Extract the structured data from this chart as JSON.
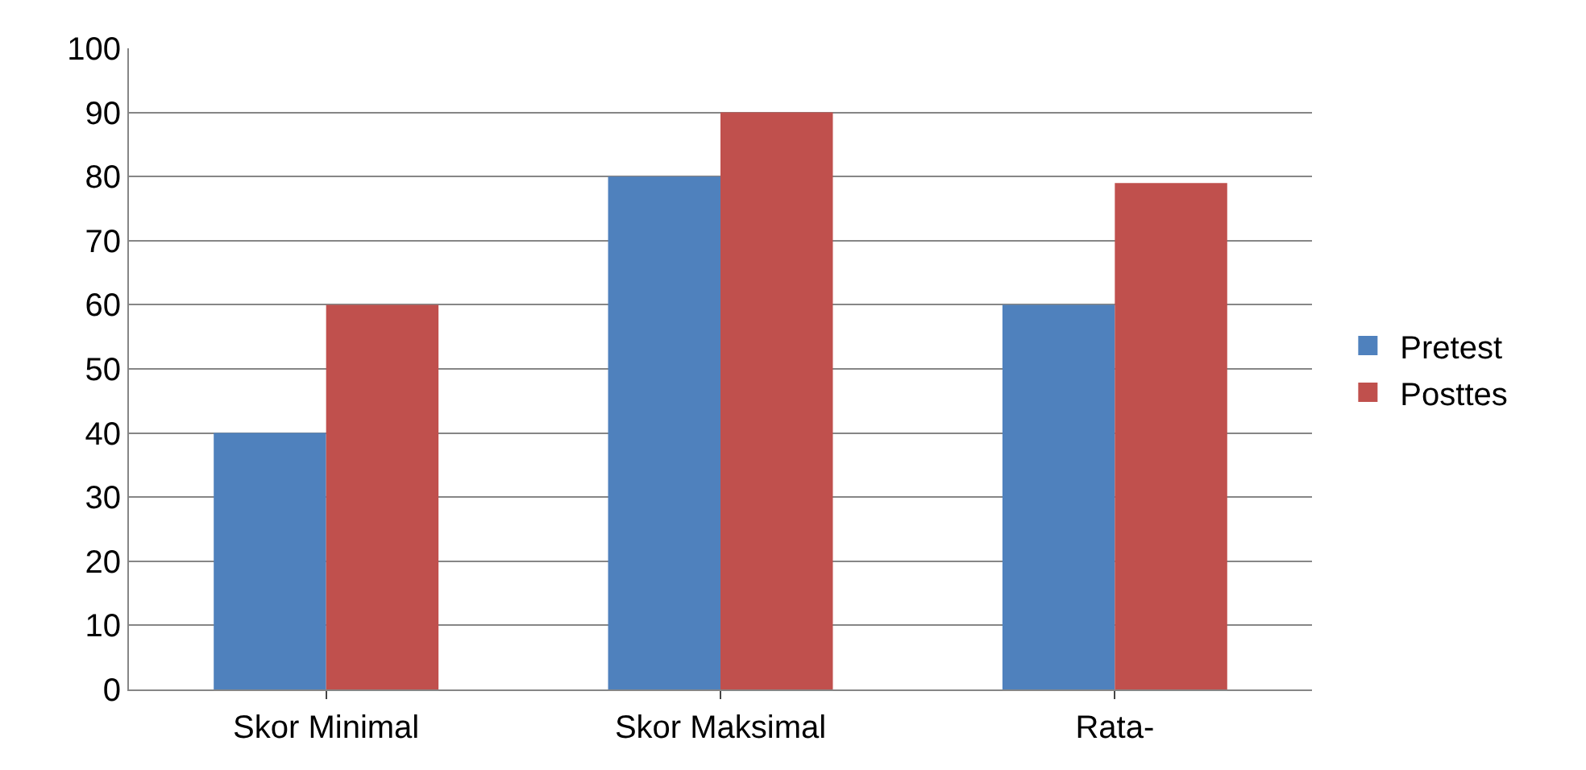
{
  "chart_data": {
    "type": "bar",
    "categories": [
      "Skor Minimal",
      "Skor Maksimal",
      "Rata-"
    ],
    "series": [
      {
        "name": "Pretest",
        "color": "#4f81bd",
        "values": [
          40,
          80,
          60
        ]
      },
      {
        "name": "Posttes",
        "color": "#c0504d",
        "values": [
          60,
          90,
          79
        ]
      }
    ],
    "ylim": [
      0,
      100
    ],
    "yticks": [
      0,
      10,
      20,
      30,
      40,
      50,
      60,
      70,
      80,
      90,
      100
    ],
    "grid": "y",
    "legend": "right"
  }
}
